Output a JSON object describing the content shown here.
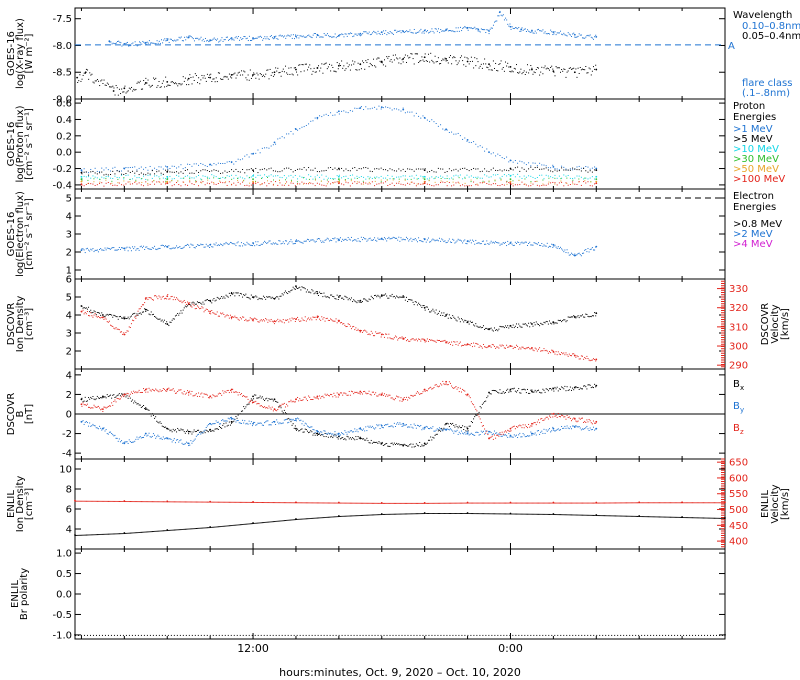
{
  "figure": {
    "xlabel": "hours:minutes, Oct.  9, 2020 – Oct. 10, 2020",
    "xticks": [
      {
        "x": 12,
        "label": "12:00"
      },
      {
        "x": 24,
        "label": "0:00"
      }
    ],
    "xlim": [
      3.7,
      34.0
    ]
  },
  "chart_data": [
    {
      "type": "scatter",
      "id": "xray",
      "ylabel": [
        "GOES-16",
        "log(X-ray flux)",
        "[W m⁻²]"
      ],
      "ylim": [
        -9.0,
        -7.3
      ],
      "yticks": [
        -9.0,
        -8.5,
        -8.0,
        -7.5
      ],
      "ytick_labels": [
        "-9.0",
        "-8.5",
        "-8.0",
        "-7.5"
      ],
      "grid": false,
      "ref_lines": [
        {
          "y": -7.99,
          "label": "A",
          "style": "dashed",
          "color": "#1e73d2"
        }
      ],
      "legend_title": "Wavelength",
      "legend": [
        {
          "label": "0.10–0.8nm",
          "color": "#1e73d2"
        },
        {
          "label": "0.05–0.4nm",
          "color": "#000000"
        }
      ],
      "legend_extra": {
        "label": "flare class",
        "sublabel": "(.1–.8nm)",
        "color": "#1e73d2"
      },
      "series": [
        {
          "name": "0.10–0.8nm",
          "color": "#1e73d2",
          "marker": "line",
          "x": [
            5.3,
            6,
            7,
            8,
            9,
            10,
            11,
            12,
            13,
            14,
            15,
            16,
            17,
            18,
            19,
            20,
            21,
            22,
            22.5,
            23,
            23.5,
            24,
            24.5,
            25,
            26,
            27,
            28
          ],
          "y": [
            -7.92,
            -7.97,
            -7.95,
            -7.9,
            -7.85,
            -7.9,
            -7.86,
            -7.86,
            -7.84,
            -7.83,
            -7.8,
            -7.82,
            -7.78,
            -7.75,
            -7.74,
            -7.72,
            -7.71,
            -7.67,
            -7.7,
            -7.73,
            -7.38,
            -7.65,
            -7.7,
            -7.72,
            -7.75,
            -7.8,
            -7.84
          ]
        },
        {
          "name": "0.05–0.4nm",
          "color": "#000000",
          "marker": "dot",
          "x": [
            3.8,
            4.2,
            5.5,
            6,
            7,
            8,
            9,
            10,
            11,
            12,
            13,
            14,
            15,
            16,
            17,
            18,
            19,
            20,
            21,
            22,
            23,
            24,
            25,
            26,
            27,
            28
          ],
          "y": [
            -8.6,
            -8.5,
            -8.85,
            -8.8,
            -8.7,
            -8.68,
            -8.62,
            -8.6,
            -8.55,
            -8.55,
            -8.5,
            -8.45,
            -8.42,
            -8.38,
            -8.35,
            -8.3,
            -8.25,
            -8.22,
            -8.25,
            -8.3,
            -8.35,
            -8.4,
            -8.45,
            -8.48,
            -8.5,
            -8.45
          ]
        }
      ]
    },
    {
      "type": "scatter",
      "id": "proton",
      "ylabel": [
        "GOES-16",
        "log(Proton flux)",
        "[cm⁻² s⁻¹ sr⁻¹]"
      ],
      "ylim": [
        -0.45,
        0.65
      ],
      "yticks": [
        -0.4,
        -0.2,
        0.0,
        0.2,
        0.4,
        0.6
      ],
      "ytick_labels": [
        "-0.4",
        "-0.2",
        "0.0",
        "0.2",
        "0.4",
        "0.6"
      ],
      "grid": false,
      "legend_title": "Proton",
      "legend_title2": "Energies",
      "legend": [
        {
          "label": ">1 MeV",
          "color": "#1e73d2"
        },
        {
          "label": ">5 MeV",
          "color": "#000000"
        },
        {
          "label": ">10 MeV",
          "color": "#11d6e6"
        },
        {
          "label": ">30 MeV",
          "color": "#2dbf2d"
        },
        {
          "label": ">50 MeV",
          "color": "#e8a52a"
        },
        {
          "label": ">100 MeV",
          "color": "#e3241b"
        }
      ],
      "series": [
        {
          "name": ">1 MeV",
          "color": "#1e73d2",
          "x": [
            4,
            6,
            8,
            10,
            11,
            12,
            13,
            14,
            15,
            16,
            17,
            18,
            19,
            20,
            21,
            22,
            23,
            24,
            26,
            28
          ],
          "y": [
            -0.22,
            -0.2,
            -0.18,
            -0.15,
            -0.12,
            -0.02,
            0.12,
            0.28,
            0.42,
            0.5,
            0.54,
            0.55,
            0.52,
            0.42,
            0.28,
            0.15,
            0.0,
            -0.1,
            -0.18,
            -0.2
          ]
        },
        {
          "name": ">5 MeV",
          "color": "#000000",
          "x": [
            4,
            8,
            12,
            16,
            20,
            24,
            28
          ],
          "y": [
            -0.25,
            -0.24,
            -0.22,
            -0.2,
            -0.22,
            -0.2,
            -0.22
          ]
        },
        {
          "name": ">10 MeV",
          "color": "#11d6e6",
          "x": [
            4,
            8,
            12,
            16,
            20,
            24,
            28
          ],
          "y": [
            -0.3,
            -0.3,
            -0.29,
            -0.3,
            -0.3,
            -0.29,
            -0.3
          ]
        },
        {
          "name": ">30 MeV",
          "color": "#2dbf2d",
          "x": [
            4,
            8,
            12,
            16,
            20,
            24,
            28
          ],
          "y": [
            -0.33,
            -0.33,
            -0.33,
            -0.33,
            -0.33,
            -0.33,
            -0.33
          ]
        },
        {
          "name": ">50 MeV",
          "color": "#e8a52a",
          "x": [
            4,
            8,
            12,
            16,
            20,
            24,
            28
          ],
          "y": [
            -0.36,
            -0.36,
            -0.36,
            -0.36,
            -0.36,
            -0.36,
            -0.36
          ]
        },
        {
          "name": ">100 MeV",
          "color": "#e3241b",
          "x": [
            4,
            8,
            12,
            16,
            20,
            24,
            28
          ],
          "y": [
            -0.39,
            -0.38,
            -0.38,
            -0.38,
            -0.38,
            -0.38,
            -0.38
          ]
        }
      ]
    },
    {
      "type": "scatter",
      "id": "electron",
      "ylabel": [
        "GOES-16",
        "log(Electron flux)",
        "[cm⁻² s⁻¹ sr⁻¹]"
      ],
      "ylim": [
        0.5,
        5.5
      ],
      "yticks": [
        1,
        2,
        3,
        4,
        5
      ],
      "ytick_labels": [
        "1",
        "2",
        "3",
        "4",
        "5"
      ],
      "grid": false,
      "ref_lines": [
        {
          "y": 5.0,
          "label": "",
          "style": "dashed",
          "color": "#000000"
        }
      ],
      "legend_title": "Electron",
      "legend_title2": "Energies",
      "legend": [
        {
          "label": ">0.8 MeV",
          "color": "#000000"
        },
        {
          "label": ">2 MeV",
          "color": "#1e73d2"
        },
        {
          "label": ">4 MeV",
          "color": "#d11fd1"
        }
      ],
      "series": [
        {
          "name": ">2 MeV",
          "color": "#1e73d2",
          "x": [
            4,
            6,
            8,
            10,
            12,
            14,
            16,
            18,
            20,
            22,
            24,
            26,
            27,
            28
          ],
          "y": [
            2.1,
            2.2,
            2.3,
            2.4,
            2.5,
            2.6,
            2.7,
            2.75,
            2.7,
            2.6,
            2.5,
            2.4,
            1.8,
            2.3
          ]
        }
      ]
    },
    {
      "type": "scatter",
      "id": "dscovr-plasma",
      "ylabel": [
        "DSCOVR",
        "Ion Density",
        "[cm⁻³]"
      ],
      "ylim": [
        1.0,
        6.0
      ],
      "yticks": [
        2,
        3,
        4,
        5,
        6
      ],
      "ytick_labels": [
        "2",
        "3",
        "4",
        "5",
        "6"
      ],
      "ylabel_right": [
        "DSCOVR",
        "Velocity",
        "[km/s]"
      ],
      "ylim_right": [
        288,
        335
      ],
      "yticks_right": [
        290,
        300,
        310,
        320,
        330
      ],
      "ytick_labels_right": [
        "290",
        "300",
        "310",
        "320",
        "330"
      ],
      "grid": false,
      "series": [
        {
          "name": "Ion Density",
          "color": "#000000",
          "axis": "left",
          "x": [
            4,
            5,
            6,
            7,
            8,
            9,
            10,
            11,
            12,
            13,
            14,
            15,
            16,
            17,
            18,
            19,
            20,
            21,
            22,
            23,
            24,
            25,
            26,
            27,
            28
          ],
          "y": [
            4.5,
            4.0,
            3.8,
            4.3,
            3.5,
            4.6,
            4.8,
            5.2,
            5.0,
            4.9,
            5.6,
            5.2,
            5.0,
            4.8,
            5.1,
            5.0,
            4.4,
            4.0,
            3.6,
            3.2,
            3.4,
            3.5,
            3.6,
            3.9,
            4.1
          ]
        },
        {
          "name": "Velocity",
          "color": "#e3241b",
          "axis": "right",
          "x": [
            4,
            5,
            6,
            7,
            8,
            9,
            10,
            11,
            12,
            13,
            14,
            15,
            16,
            17,
            18,
            19,
            20,
            21,
            22,
            23,
            24,
            25,
            26,
            27,
            28
          ],
          "y": [
            318,
            315,
            306,
            325,
            326,
            322,
            318,
            315,
            314,
            313,
            314,
            315,
            313,
            308,
            306,
            304,
            303,
            302,
            301,
            300,
            300,
            299,
            297,
            295,
            293
          ]
        }
      ]
    },
    {
      "type": "scatter",
      "id": "dscovr-mag",
      "ylabel": [
        "DSCOVR",
        "B",
        "[nT]"
      ],
      "ylim": [
        -4.6,
        4.6
      ],
      "yticks": [
        -4,
        -2,
        0,
        2,
        4
      ],
      "ytick_labels": [
        "-4",
        "-2",
        "0",
        "2",
        "4"
      ],
      "grid": false,
      "ref_lines": [
        {
          "y": 0,
          "label": "",
          "style": "solid",
          "color": "#000000"
        }
      ],
      "legend": [
        {
          "label": "B",
          "sub": "x",
          "color": "#000000"
        },
        {
          "label": "B",
          "sub": "y",
          "color": "#1e73d2"
        },
        {
          "label": "B",
          "sub": "z",
          "color": "#e3241b"
        }
      ],
      "series": [
        {
          "name": "Bx",
          "color": "#000000",
          "x": [
            4,
            5,
            6,
            7,
            8,
            9,
            10,
            11,
            12,
            13,
            14,
            15,
            16,
            17,
            18,
            19,
            20,
            21,
            22,
            23,
            24,
            25,
            26,
            27,
            28
          ],
          "y": [
            1.5,
            1.8,
            2.0,
            0.5,
            -1.5,
            -1.8,
            -1.6,
            -0.8,
            1.8,
            1.5,
            -1.5,
            -2.0,
            -2.3,
            -2.5,
            -3.0,
            -3.2,
            -3.0,
            -1.0,
            -1.5,
            2.2,
            2.5,
            2.3,
            2.6,
            2.7,
            2.9
          ]
        },
        {
          "name": "By",
          "color": "#1e73d2",
          "x": [
            4,
            5,
            6,
            7,
            8,
            9,
            10,
            11,
            12,
            13,
            14,
            15,
            16,
            17,
            18,
            19,
            20,
            21,
            22,
            23,
            24,
            25,
            26,
            27,
            28
          ],
          "y": [
            -0.8,
            -1.5,
            -3.0,
            -2.0,
            -2.5,
            -3.0,
            -1.0,
            -0.5,
            -1.0,
            -0.8,
            -0.5,
            -1.8,
            -2.0,
            -1.5,
            -1.2,
            -1.0,
            -1.4,
            -1.6,
            -2.0,
            -1.8,
            -2.2,
            -2.0,
            -1.5,
            -1.3,
            -1.5
          ]
        },
        {
          "name": "Bz",
          "color": "#e3241b",
          "x": [
            4,
            5,
            6,
            7,
            8,
            9,
            10,
            11,
            12,
            13,
            14,
            15,
            16,
            17,
            18,
            19,
            20,
            21,
            22,
            23,
            24,
            25,
            26,
            27,
            28
          ],
          "y": [
            1.0,
            0.5,
            2.0,
            2.5,
            2.5,
            2.2,
            1.8,
            2.5,
            1.2,
            0.5,
            1.5,
            1.8,
            2.0,
            2.3,
            2.0,
            1.5,
            2.5,
            3.3,
            2.0,
            -2.5,
            -1.5,
            -1.0,
            0.0,
            -0.5,
            -0.8
          ]
        }
      ]
    },
    {
      "type": "scatter",
      "id": "enlil-plasma",
      "ylabel": [
        "ENLIL",
        "Ion Density",
        "[cm⁻³]"
      ],
      "ylim": [
        2.0,
        11.0
      ],
      "yticks": [
        4,
        6,
        8,
        10
      ],
      "ytick_labels": [
        "4",
        "6",
        "8",
        "10"
      ],
      "ylabel_right": [
        "ENLIL",
        "Velocity",
        "[km/s]"
      ],
      "ylim_right": [
        375,
        660
      ],
      "yticks_right": [
        400,
        450,
        500,
        550,
        600,
        650
      ],
      "ytick_labels_right": [
        "400",
        "450",
        "500",
        "550",
        "600",
        "650"
      ],
      "grid": false,
      "series": [
        {
          "name": "Ion Density",
          "color": "#000000",
          "axis": "left",
          "x": [
            3.7,
            6,
            8,
            10,
            12,
            14,
            16,
            18,
            20,
            22,
            24,
            26,
            28,
            30,
            32,
            34
          ],
          "y": [
            3.4,
            3.6,
            3.9,
            4.2,
            4.6,
            5.0,
            5.3,
            5.5,
            5.6,
            5.6,
            5.55,
            5.5,
            5.4,
            5.3,
            5.2,
            5.1
          ]
        },
        {
          "name": "Velocity",
          "color": "#e3241b",
          "axis": "right",
          "x": [
            3.7,
            6,
            8,
            10,
            12,
            14,
            16,
            18,
            20,
            22,
            24,
            26,
            28,
            30,
            32,
            34
          ],
          "y": [
            528,
            527,
            526,
            525,
            524,
            523,
            522,
            521,
            521,
            522,
            522,
            522,
            522,
            523,
            523,
            523
          ]
        }
      ]
    },
    {
      "type": "scatter",
      "id": "enlil-polarity",
      "ylabel": [
        "ENLIL",
        "Br polarity"
      ],
      "ylim": [
        -1.1,
        1.1
      ],
      "yticks": [
        -1.0,
        -0.5,
        0.0,
        0.5,
        1.0
      ],
      "ytick_labels": [
        "-1.0",
        "-0.5",
        "0.0",
        "0.5",
        "1.0"
      ],
      "grid": false,
      "series": [
        {
          "name": "Br polarity",
          "color": "#000000",
          "x": [
            3.7,
            34.0
          ],
          "y": [
            -1.0,
            -1.0
          ]
        }
      ]
    }
  ]
}
